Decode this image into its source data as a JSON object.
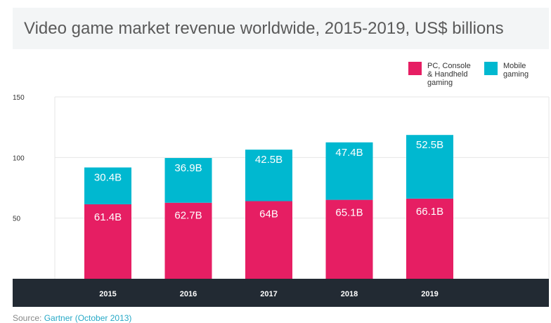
{
  "title": "Video game market revenue worldwide, 2015-2019, US$ billions",
  "source": {
    "prefix": "Source:",
    "link": "Gartner (October 2013)"
  },
  "legend": [
    {
      "label": "PC, Console & Handheld gaming",
      "color": "#e61e63"
    },
    {
      "label": "Mobile gaming",
      "color": "#00b8d0"
    }
  ],
  "colors": {
    "axis_band": "#222a33",
    "grid": "#e6e6e6",
    "bar_text": "#ffffff"
  },
  "chart_data": {
    "type": "bar",
    "stacked": true,
    "title": "Video game market revenue worldwide, 2015-2019, US$ billions",
    "categories": [
      "2015",
      "2016",
      "2017",
      "2018",
      "2019"
    ],
    "series": [
      {
        "name": "PC, Console & Handheld gaming",
        "values": [
          61.4,
          62.7,
          64,
          65.1,
          66.1
        ],
        "labels": [
          "61.4B",
          "62.7B",
          "64B",
          "65.1B",
          "66.1B"
        ],
        "color": "#e61e63"
      },
      {
        "name": "Mobile gaming",
        "values": [
          30.4,
          36.9,
          42.5,
          47.4,
          52.5
        ],
        "labels": [
          "30.4B",
          "36.9B",
          "42.5B",
          "47.4B",
          "52.5B"
        ],
        "color": "#00b8d0"
      }
    ],
    "yticks": [
      50,
      100,
      150
    ],
    "ylim": [
      0,
      150
    ],
    "xlabel": "",
    "ylabel": "",
    "grid": true,
    "legend_position": "top-right"
  }
}
